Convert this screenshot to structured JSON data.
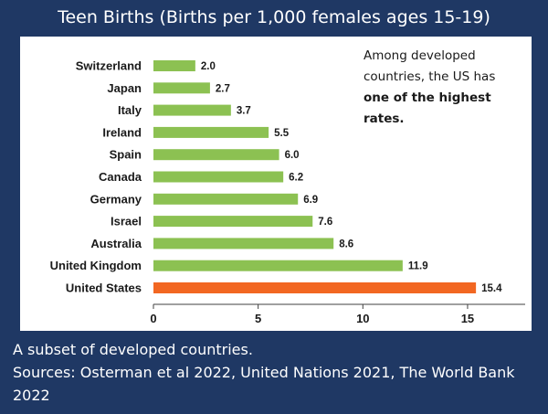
{
  "header": {
    "title": "Teen Births (Births per 1,000 females ages 15-19)"
  },
  "annotation": {
    "prefix": "Among developed countries, the US has",
    "emphasis": "one of the highest rates."
  },
  "footer": {
    "line1": "A subset of developed countries.",
    "line2": "Sources: Osterman et al 2022, United Nations 2021, The World Bank 2022"
  },
  "colors": {
    "background": "#1f3864",
    "bar": "#8cc152",
    "highlight": "#f26722"
  },
  "chart_data": {
    "type": "bar",
    "orientation": "horizontal",
    "title": "Teen Births (Births per 1,000 females ages 15-19)",
    "xlabel": "",
    "ylabel": "",
    "xlim": [
      0,
      18
    ],
    "xticks": [
      0,
      5,
      10,
      15
    ],
    "categories": [
      "Switzerland",
      "Japan",
      "Italy",
      "Ireland",
      "Spain",
      "Canada",
      "Germany",
      "Israel",
      "Australia",
      "United Kingdom",
      "United States"
    ],
    "values": [
      2.0,
      2.7,
      3.7,
      5.5,
      6.0,
      6.2,
      6.9,
      7.6,
      8.6,
      11.9,
      15.4
    ],
    "value_labels": [
      "2.0",
      "2.7",
      "3.7",
      "5.5",
      "6.0",
      "6.2",
      "6.9",
      "7.6",
      "8.6",
      "11.9",
      "15.4"
    ],
    "highlight_category": "United States",
    "grid": false
  }
}
